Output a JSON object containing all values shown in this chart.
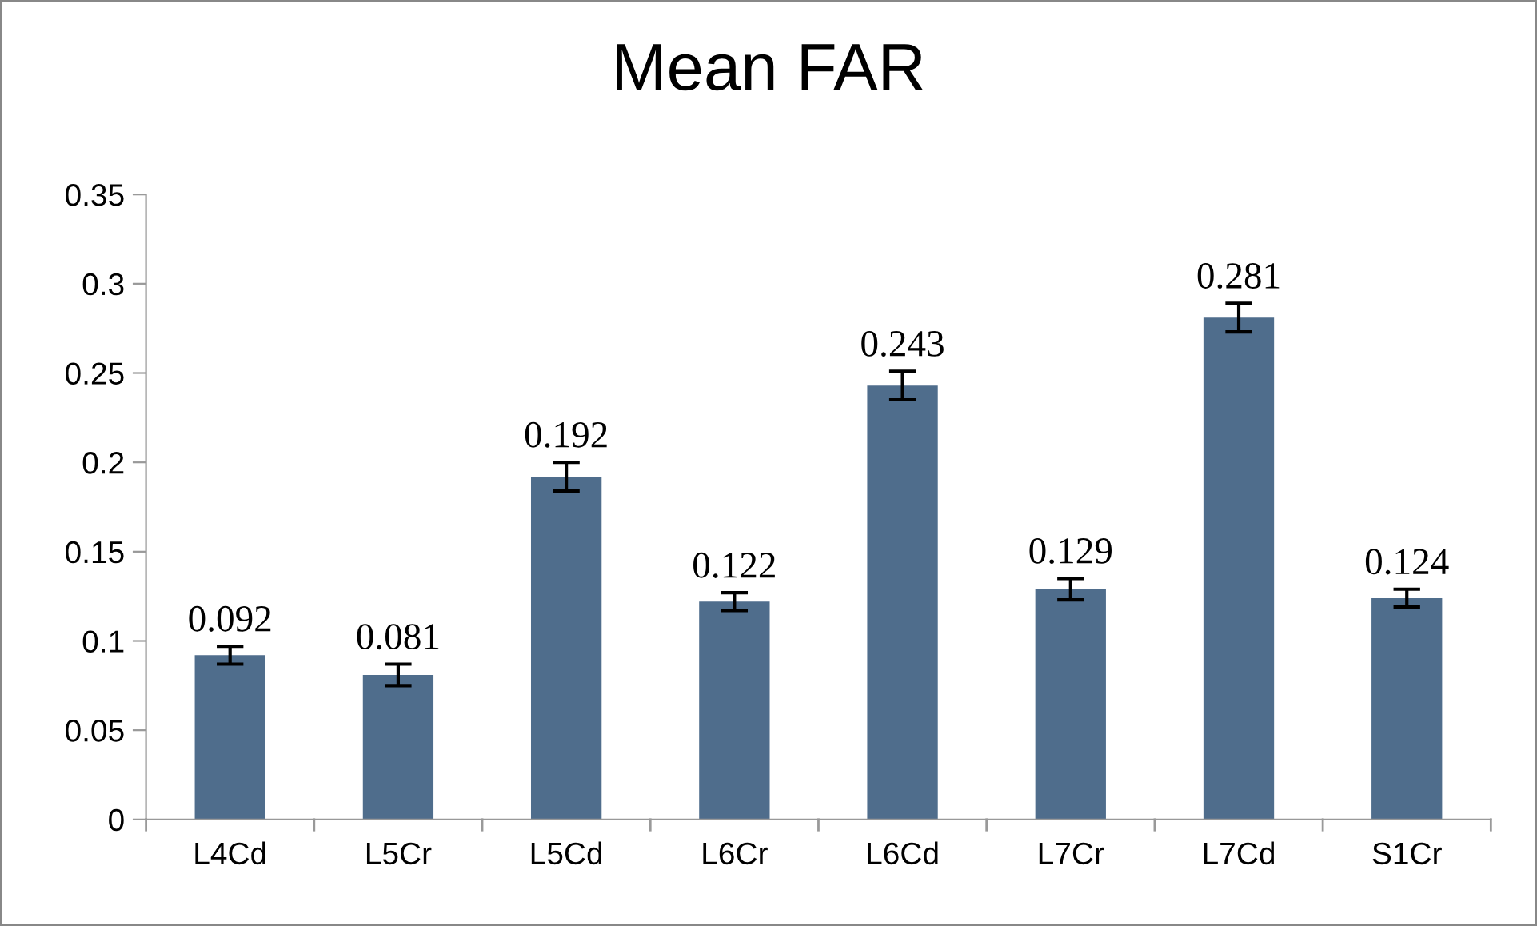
{
  "chart_data": {
    "type": "bar",
    "title": "Mean FAR",
    "categories": [
      "L4Cd",
      "L5Cr",
      "L5Cd",
      "L6Cr",
      "L6Cd",
      "L7Cr",
      "L7Cd",
      "S1Cr"
    ],
    "values": [
      0.092,
      0.081,
      0.192,
      0.122,
      0.243,
      0.129,
      0.281,
      0.124
    ],
    "errors": [
      0.005,
      0.006,
      0.008,
      0.005,
      0.008,
      0.006,
      0.008,
      0.005
    ],
    "color": "#4f6d8c",
    "ylim": [
      0,
      0.35
    ],
    "yticks": [
      {
        "value": 0,
        "label": "0"
      },
      0.05,
      {
        "value": 0.1,
        "label": "0.1"
      },
      0.15,
      {
        "value": 0.2,
        "label": "0.2"
      },
      0.25,
      {
        "value": 0.3,
        "label": "0.3"
      },
      0.35
    ],
    "data_labels": true,
    "grid": false,
    "legend": false
  }
}
